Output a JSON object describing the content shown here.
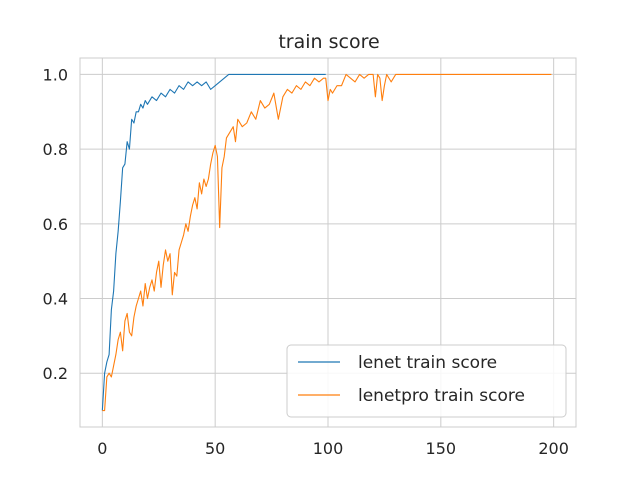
{
  "chart_data": {
    "type": "line",
    "title": "train score",
    "xlabel": "",
    "ylabel": "",
    "xlim": [
      -9.9,
      209.9
    ],
    "ylim": [
      0.056,
      1.044
    ],
    "xticks": [
      0,
      50,
      100,
      150,
      200
    ],
    "yticks": [
      0.2,
      0.4,
      0.6,
      0.8,
      1.0
    ],
    "xtick_labels": [
      "0",
      "50",
      "100",
      "150",
      "200"
    ],
    "ytick_labels": [
      "0.2",
      "0.4",
      "0.6",
      "0.8",
      "1.0"
    ],
    "grid": true,
    "legend_position": "lower-right",
    "series": [
      {
        "name": "lenet train score",
        "color": "#1f77b4",
        "x": [
          0,
          1,
          2,
          3,
          4,
          5,
          6,
          7,
          8,
          9,
          10,
          11,
          12,
          13,
          14,
          15,
          16,
          17,
          18,
          19,
          20,
          22,
          24,
          26,
          28,
          30,
          32,
          34,
          36,
          38,
          40,
          42,
          44,
          46,
          48,
          50,
          52,
          54,
          56,
          58,
          60,
          65,
          70,
          75,
          80,
          85,
          90,
          95,
          99
        ],
        "y": [
          0.1,
          0.2,
          0.23,
          0.25,
          0.37,
          0.42,
          0.52,
          0.58,
          0.66,
          0.75,
          0.76,
          0.82,
          0.8,
          0.88,
          0.87,
          0.9,
          0.9,
          0.92,
          0.91,
          0.93,
          0.92,
          0.94,
          0.93,
          0.95,
          0.94,
          0.96,
          0.95,
          0.97,
          0.96,
          0.98,
          0.97,
          0.98,
          0.97,
          0.98,
          0.96,
          0.97,
          0.98,
          0.99,
          1.0,
          1.0,
          1.0,
          1.0,
          1.0,
          1.0,
          1.0,
          1.0,
          1.0,
          1.0,
          1.0
        ]
      },
      {
        "name": "lenetpro train score",
        "color": "#ff7f0e",
        "x": [
          0,
          1,
          2,
          3,
          4,
          5,
          6,
          7,
          8,
          9,
          10,
          11,
          12,
          13,
          14,
          15,
          16,
          17,
          18,
          19,
          20,
          21,
          22,
          23,
          24,
          25,
          26,
          27,
          28,
          29,
          30,
          31,
          32,
          33,
          34,
          35,
          36,
          37,
          38,
          39,
          40,
          41,
          42,
          43,
          44,
          45,
          46,
          47,
          48,
          49,
          50,
          51,
          52,
          53,
          54,
          55,
          56,
          57,
          58,
          59,
          60,
          62,
          64,
          66,
          68,
          70,
          72,
          74,
          76,
          78,
          80,
          82,
          84,
          86,
          88,
          90,
          92,
          94,
          96,
          98,
          99,
          100,
          101,
          102,
          104,
          106,
          108,
          110,
          112,
          114,
          116,
          118,
          120,
          121,
          122,
          123,
          124,
          125,
          126,
          128,
          130,
          132,
          134,
          136,
          138,
          140,
          145,
          150,
          160,
          170,
          180,
          190,
          199
        ],
        "y": [
          0.1,
          0.1,
          0.19,
          0.2,
          0.19,
          0.22,
          0.25,
          0.29,
          0.31,
          0.26,
          0.34,
          0.36,
          0.31,
          0.3,
          0.35,
          0.38,
          0.4,
          0.42,
          0.38,
          0.44,
          0.4,
          0.43,
          0.45,
          0.42,
          0.47,
          0.5,
          0.43,
          0.49,
          0.53,
          0.5,
          0.52,
          0.41,
          0.47,
          0.46,
          0.53,
          0.55,
          0.57,
          0.6,
          0.58,
          0.62,
          0.65,
          0.67,
          0.64,
          0.71,
          0.68,
          0.72,
          0.7,
          0.72,
          0.76,
          0.79,
          0.81,
          0.78,
          0.59,
          0.75,
          0.78,
          0.83,
          0.84,
          0.85,
          0.86,
          0.82,
          0.88,
          0.86,
          0.87,
          0.9,
          0.88,
          0.93,
          0.91,
          0.92,
          0.95,
          0.88,
          0.94,
          0.96,
          0.95,
          0.97,
          0.96,
          0.98,
          0.97,
          0.99,
          0.98,
          0.99,
          0.99,
          0.93,
          0.96,
          0.95,
          0.97,
          0.97,
          1.0,
          0.99,
          0.98,
          1.0,
          0.99,
          1.0,
          1.0,
          0.94,
          1.0,
          0.99,
          0.93,
          0.97,
          1.0,
          0.98,
          1.0,
          1.0,
          1.0,
          1.0,
          1.0,
          1.0,
          1.0,
          1.0,
          1.0,
          1.0,
          1.0,
          1.0,
          1.0
        ]
      }
    ]
  }
}
